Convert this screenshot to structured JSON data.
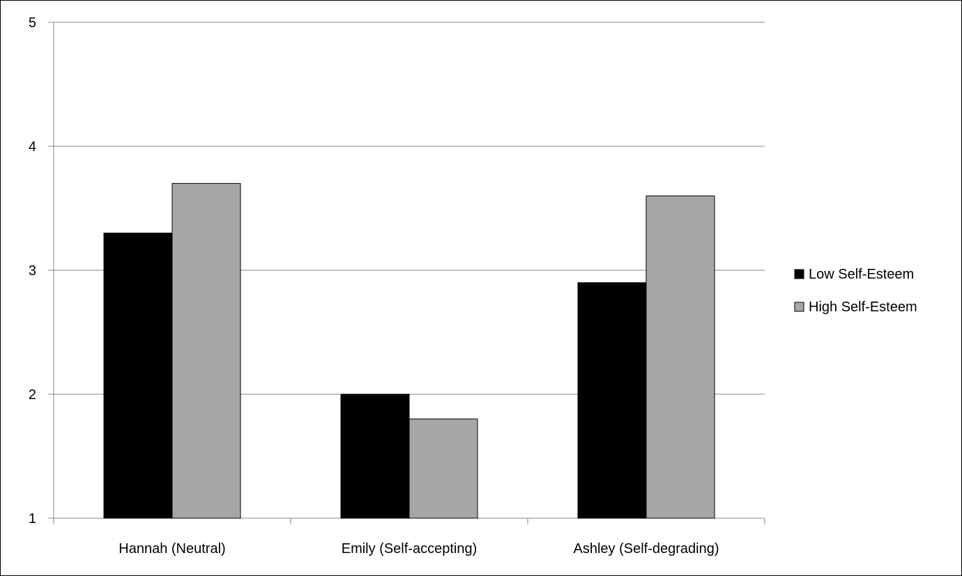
{
  "figure": {
    "title": ""
  },
  "chart_data": {
    "type": "bar",
    "title": "",
    "xlabel": "",
    "ylabel": "",
    "categories": [
      "Hannah (Neutral)",
      "Emily (Self-accepting)",
      "Ashley (Self-degrading)"
    ],
    "series": [
      {
        "name": "Low Self-Esteem",
        "color": "#000000",
        "values": [
          3.3,
          2.0,
          2.9
        ]
      },
      {
        "name": "High Self-Esteem",
        "color": "#a6a6a6",
        "values": [
          3.7,
          1.8,
          3.6
        ]
      }
    ],
    "ylim": [
      1,
      5
    ],
    "yticks": [
      "1",
      "2",
      "3",
      "4",
      "5"
    ],
    "grid": true,
    "legend_position": "right"
  }
}
